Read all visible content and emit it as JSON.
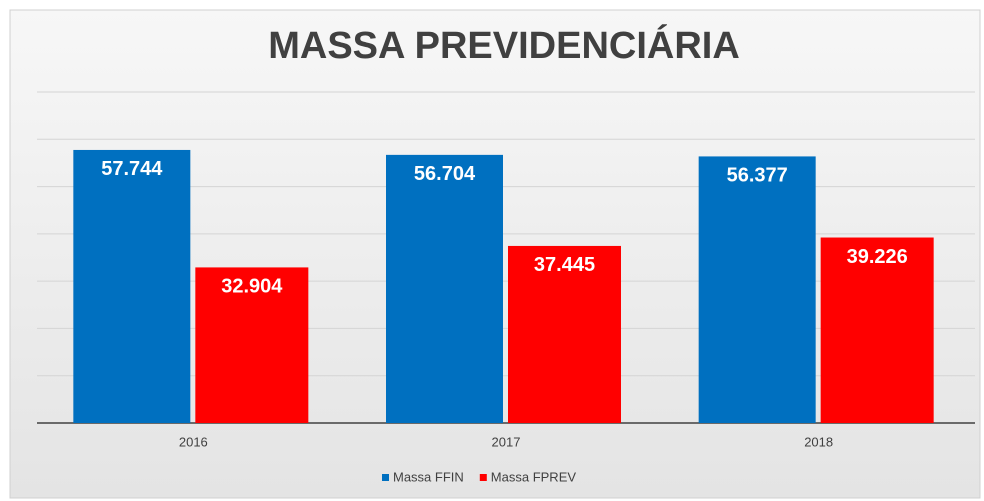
{
  "chart_data": {
    "type": "bar",
    "title": "MASSA PREVIDENCIÁRIA",
    "categories": [
      "2016",
      "2017",
      "2018"
    ],
    "series": [
      {
        "name": "Massa FFIN",
        "color": "#0070c0",
        "values": [
          57744,
          56704,
          56377
        ],
        "value_labels": [
          "57.744",
          "56.704",
          "56.377"
        ]
      },
      {
        "name": "Massa FPREV",
        "color": "#ff0000",
        "values": [
          32904,
          37445,
          39226
        ],
        "value_labels": [
          "32.904",
          "37.445",
          "39.226"
        ]
      }
    ],
    "ylim": [
      0,
      70000
    ],
    "yticks": [
      0,
      10000,
      20000,
      30000,
      40000,
      50000,
      60000,
      70000
    ],
    "grid": true,
    "legend": "bottom"
  }
}
